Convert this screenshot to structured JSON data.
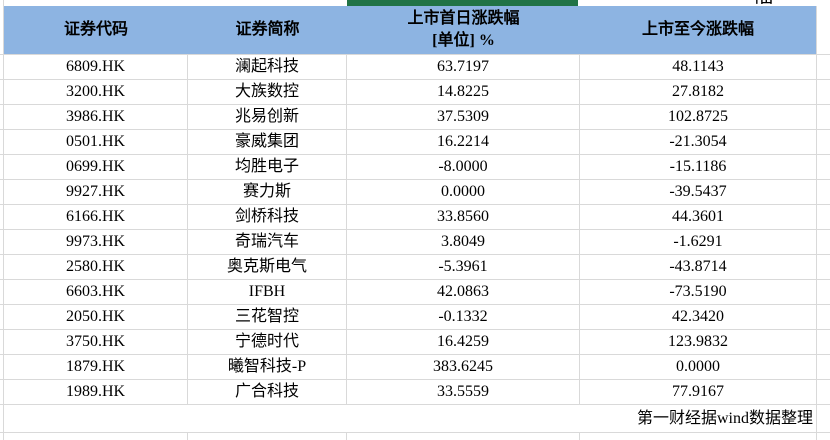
{
  "decorations": {
    "green_bar_color": "#217346",
    "header_fill_color": "#8DB4E2",
    "gridline_color": "#D9D9D9",
    "clipped_char_above": "幅"
  },
  "table": {
    "headers": {
      "code": "证券代码",
      "name": "证券简称",
      "first_day_line1": "上市首日涨跌幅",
      "first_day_line2": "[单位] %",
      "since_listing": "上市至今涨跌幅"
    },
    "rows": [
      {
        "code": "6809.HK",
        "name": "澜起科技",
        "first_day": "63.7197",
        "since": "48.1143"
      },
      {
        "code": "3200.HK",
        "name": "大族数控",
        "first_day": "14.8225",
        "since": "27.8182"
      },
      {
        "code": "3986.HK",
        "name": "兆易创新",
        "first_day": "37.5309",
        "since": "102.8725"
      },
      {
        "code": "0501.HK",
        "name": "豪威集团",
        "first_day": "16.2214",
        "since": "-21.3054"
      },
      {
        "code": "0699.HK",
        "name": "均胜电子",
        "first_day": "-8.0000",
        "since": "-15.1186"
      },
      {
        "code": "9927.HK",
        "name": "赛力斯",
        "first_day": "0.0000",
        "since": "-39.5437"
      },
      {
        "code": "6166.HK",
        "name": "剑桥科技",
        "first_day": "33.8560",
        "since": "44.3601"
      },
      {
        "code": "9973.HK",
        "name": "奇瑞汽车",
        "first_day": "3.8049",
        "since": "-1.6291"
      },
      {
        "code": "2580.HK",
        "name": "奥克斯电气",
        "first_day": "-5.3961",
        "since": "-43.8714"
      },
      {
        "code": "6603.HK",
        "name": "IFBH",
        "first_day": "42.0863",
        "since": "-73.5190"
      },
      {
        "code": "2050.HK",
        "name": "三花智控",
        "first_day": "-0.1332",
        "since": "42.3420"
      },
      {
        "code": "3750.HK",
        "name": "宁德时代",
        "first_day": "16.4259",
        "since": "123.9832"
      },
      {
        "code": "1879.HK",
        "name": "曦智科技-P",
        "first_day": "383.6245",
        "since": "0.0000"
      },
      {
        "code": "1989.HK",
        "name": "广合科技",
        "first_day": "33.5559",
        "since": "77.9167"
      }
    ],
    "footer_note": "第一财经据wind数据整理"
  }
}
